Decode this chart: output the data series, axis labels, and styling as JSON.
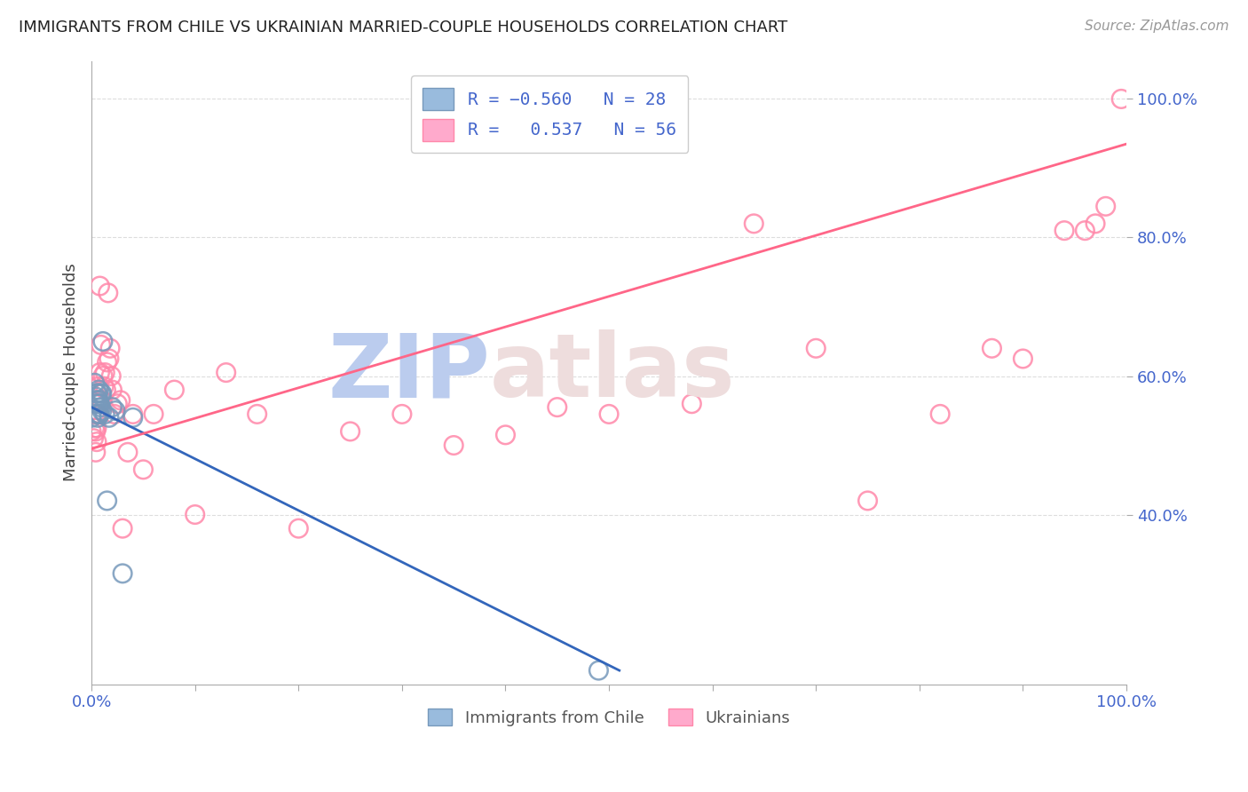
{
  "title": "IMMIGRANTS FROM CHILE VS UKRAINIAN MARRIED-COUPLE HOUSEHOLDS CORRELATION CHART",
  "source": "Source: ZipAtlas.com",
  "ylabel": "Married-couple Households",
  "legend_label1": "Immigrants from Chile",
  "legend_label2": "Ukrainians",
  "blue_color": "#99BBDD",
  "pink_color": "#FFAACC",
  "blue_edge_color": "#7799BB",
  "pink_edge_color": "#FF88AA",
  "line_blue_color": "#3366BB",
  "line_pink_color": "#FF6688",
  "blue_points_x": [
    0.0,
    0.003,
    0.004,
    0.004,
    0.005,
    0.005,
    0.005,
    0.006,
    0.006,
    0.006,
    0.007,
    0.007,
    0.007,
    0.008,
    0.008,
    0.009,
    0.009,
    0.01,
    0.01,
    0.011,
    0.013,
    0.015,
    0.017,
    0.02,
    0.023,
    0.03,
    0.04,
    0.49
  ],
  "blue_points_y": [
    0.54,
    0.59,
    0.565,
    0.57,
    0.545,
    0.56,
    0.575,
    0.54,
    0.56,
    0.575,
    0.545,
    0.565,
    0.58,
    0.545,
    0.56,
    0.555,
    0.575,
    0.55,
    0.575,
    0.65,
    0.545,
    0.42,
    0.54,
    0.555,
    0.55,
    0.315,
    0.54,
    0.175
  ],
  "pink_points_x": [
    0.0,
    0.002,
    0.003,
    0.003,
    0.004,
    0.004,
    0.005,
    0.005,
    0.006,
    0.006,
    0.007,
    0.008,
    0.008,
    0.009,
    0.01,
    0.011,
    0.012,
    0.013,
    0.014,
    0.015,
    0.016,
    0.017,
    0.018,
    0.019,
    0.02,
    0.022,
    0.025,
    0.028,
    0.03,
    0.035,
    0.04,
    0.05,
    0.06,
    0.08,
    0.1,
    0.13,
    0.16,
    0.2,
    0.25,
    0.3,
    0.35,
    0.4,
    0.45,
    0.5,
    0.58,
    0.64,
    0.7,
    0.75,
    0.82,
    0.87,
    0.9,
    0.94,
    0.96,
    0.97,
    0.98,
    0.995
  ],
  "pink_points_y": [
    0.52,
    0.51,
    0.525,
    0.545,
    0.49,
    0.52,
    0.505,
    0.525,
    0.545,
    0.565,
    0.585,
    0.73,
    0.605,
    0.645,
    0.565,
    0.6,
    0.585,
    0.605,
    0.58,
    0.62,
    0.72,
    0.625,
    0.64,
    0.6,
    0.58,
    0.545,
    0.56,
    0.565,
    0.38,
    0.49,
    0.545,
    0.465,
    0.545,
    0.58,
    0.4,
    0.605,
    0.545,
    0.38,
    0.52,
    0.545,
    0.5,
    0.515,
    0.555,
    0.545,
    0.56,
    0.82,
    0.64,
    0.42,
    0.545,
    0.64,
    0.625,
    0.81,
    0.81,
    0.82,
    0.845,
    1.0
  ],
  "blue_line_x": [
    0.0,
    0.51
  ],
  "blue_line_y": [
    0.555,
    0.175
  ],
  "pink_line_x": [
    0.0,
    1.0
  ],
  "pink_line_y": [
    0.495,
    0.935
  ],
  "xlim": [
    0.0,
    1.0
  ],
  "ylim": [
    0.155,
    1.055
  ],
  "ytick_positions": [
    0.4,
    0.6,
    0.8,
    1.0
  ],
  "ytick_labels": [
    "40.0%",
    "60.0%",
    "80.0%",
    "100.0%"
  ],
  "xtick_positions": [
    0.0,
    0.1,
    0.2,
    0.3,
    0.4,
    0.5,
    0.6,
    0.7,
    0.8,
    0.9,
    1.0
  ],
  "xtick_labels": [
    "0.0%",
    "",
    "",
    "",
    "",
    "",
    "",
    "",
    "",
    "",
    "100.0%"
  ],
  "grid_color": "#DDDDDD",
  "tick_color": "#4466CC",
  "title_color": "#222222",
  "axis_color": "#AAAAAA",
  "watermark_zip_color": "#BBCCEE",
  "watermark_atlas_color": "#EEDDDD"
}
